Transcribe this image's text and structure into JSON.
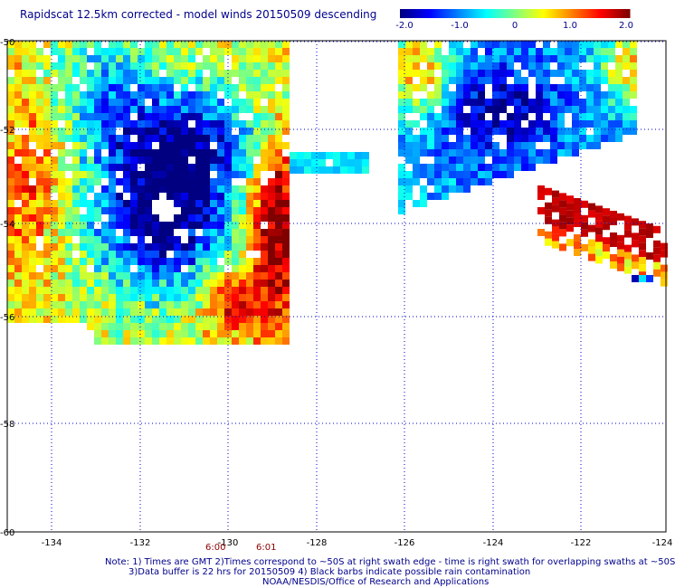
{
  "title": "Rapidscat 12.5km corrected - model winds 20150509 descending",
  "colorbar": {
    "ticks": [
      "-2.0",
      "-1.0",
      "0",
      "1.0",
      "2.0"
    ],
    "min": -2.0,
    "max": 2.0
  },
  "axes": {
    "x_ticks": [
      "-134",
      "-132",
      "-130",
      "-128",
      "-126",
      "-124",
      "-122",
      "-124"
    ],
    "y_ticks": [
      "-50",
      "-52",
      "-54",
      "-56",
      "-58",
      "-60"
    ]
  },
  "times": [
    "6:00",
    "6:01"
  ],
  "notes": [
    "Note: 1) Times are GMT 2)Times correspond to ~50S at right swath edge - time is right swath for overlapping swaths at ~50S",
    "3)Data buffer is 22 hrs for 20150509 4) Black barbs indicate possible rain contamination",
    "NOAA/NESDIS/Office of Research and Applications"
  ],
  "colors": {
    "grid": "#0000c8",
    "frame": "#000000",
    "text": "#00008b",
    "time": "#8b0000"
  },
  "colormap": "jet"
}
